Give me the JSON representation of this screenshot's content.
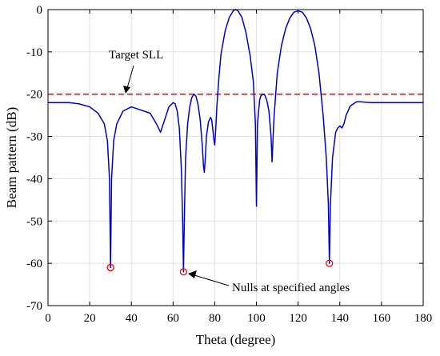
{
  "chart_data": {
    "type": "line",
    "xlabel": "Theta (degree)",
    "ylabel": "Beam pattern (dB)",
    "xlim": [
      0,
      180
    ],
    "ylim": [
      -70,
      0
    ],
    "xticks": [
      0,
      20,
      40,
      60,
      80,
      100,
      120,
      140,
      160,
      180
    ],
    "yticks": [
      0,
      -10,
      -20,
      -30,
      -40,
      -50,
      -60,
      -70
    ],
    "grid": true,
    "colors": {
      "beam": "#0000cc",
      "sll": "#ff0000",
      "marker": "#ff0000"
    },
    "target_sll": {
      "label": "Target SLL",
      "y": -20
    },
    "nulls": {
      "label": "Nulls at specified angles",
      "points": [
        {
          "x": 30,
          "y": -61
        },
        {
          "x": 65,
          "y": -62
        },
        {
          "x": 135,
          "y": -60
        }
      ]
    },
    "series": [
      {
        "name": "",
        "x": [
          0,
          5,
          10,
          15,
          20,
          24,
          27,
          28.5,
          29.5,
          30,
          30.5,
          31.5,
          33,
          36,
          40,
          43,
          46,
          49,
          52,
          54,
          56,
          58,
          60,
          61,
          62,
          63,
          64,
          64.6,
          65,
          65.4,
          66,
          67,
          68,
          69,
          70,
          71,
          72,
          73,
          74,
          74.6,
          75,
          75.5,
          76,
          77,
          78,
          78.5,
          79,
          79.5,
          80,
          80.5,
          81,
          82,
          83,
          85,
          87,
          89,
          90,
          91,
          93,
          95,
          97,
          98.5,
          99.5,
          100,
          100.5,
          101.5,
          102,
          103,
          104,
          105,
          106,
          107,
          107.5,
          108,
          108.5,
          110,
          112,
          114,
          116,
          118,
          120,
          122,
          124,
          126,
          128,
          130,
          132,
          133.5,
          134.5,
          135,
          135.5,
          136.5,
          138,
          139,
          140,
          141,
          142,
          143,
          145,
          148,
          150,
          155,
          160,
          170,
          180
        ],
        "y": [
          -22,
          -22,
          -22,
          -22.3,
          -23,
          -24.5,
          -27,
          -31,
          -40,
          -61,
          -40,
          -31,
          -27,
          -24,
          -23,
          -23.5,
          -24,
          -24.5,
          -27,
          -29,
          -26,
          -23,
          -22,
          -22.3,
          -24,
          -28,
          -38,
          -50,
          -62,
          -50,
          -35,
          -27,
          -23,
          -20.8,
          -20,
          -20.5,
          -22.5,
          -26,
          -32,
          -37,
          -38.5,
          -35,
          -30,
          -26.5,
          -25.5,
          -26,
          -28,
          -30.5,
          -32,
          -28,
          -23,
          -16,
          -10.5,
          -5,
          -1.8,
          -0.2,
          0,
          -0.2,
          -1.8,
          -5.5,
          -11,
          -17,
          -27,
          -46.5,
          -27,
          -21.5,
          -20.5,
          -20,
          -20.2,
          -21.5,
          -24,
          -30,
          -36,
          -30,
          -25,
          -15,
          -8.5,
          -4.5,
          -2,
          -0.6,
          -0.3,
          -0.6,
          -2,
          -4.5,
          -8.5,
          -15,
          -25,
          -35,
          -46,
          -60,
          -46,
          -35,
          -29,
          -28,
          -27.5,
          -28,
          -27,
          -25,
          -22.8,
          -21.8,
          -21.8,
          -22,
          -22,
          -22,
          -22
        ]
      }
    ]
  }
}
